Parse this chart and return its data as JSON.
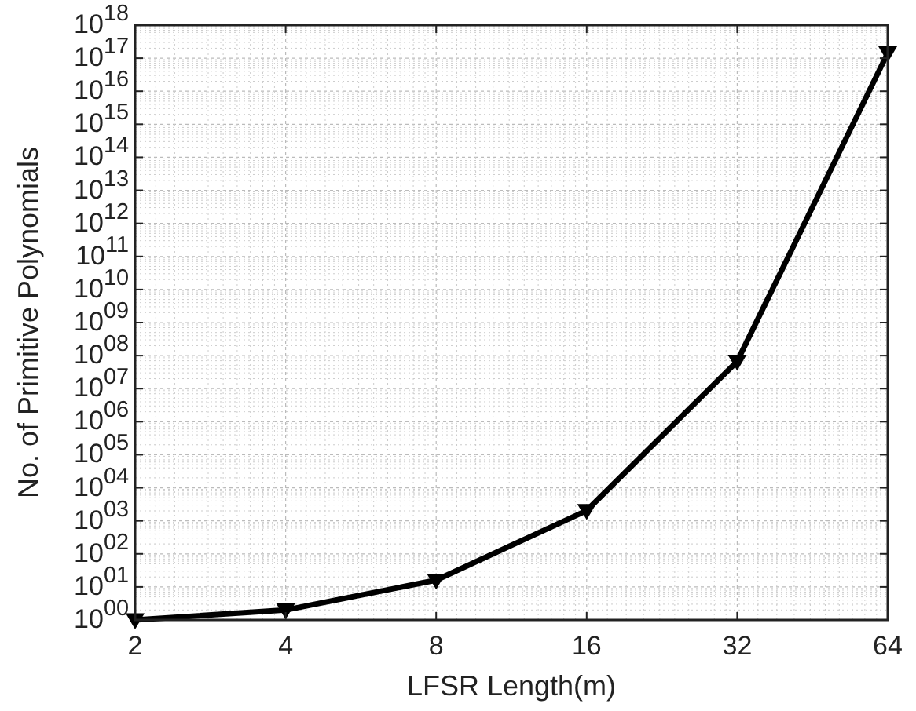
{
  "chart_data": {
    "type": "line",
    "xlabel": "LFSR Length(m)",
    "ylabel": "No. of Primitive Polynomials",
    "x": [
      2,
      4,
      8,
      16,
      32,
      64
    ],
    "series": [
      {
        "color": "#000000",
        "values": [
          1,
          2,
          16,
          2048,
          67108864,
          144000000000000000
        ]
      }
    ],
    "log": "xy",
    "xlim": [
      2,
      64
    ],
    "xticks": [
      2,
      4,
      8,
      16,
      32,
      64
    ],
    "ylim": [
      1,
      1000000000000000000
    ],
    "yticks": [
      {
        "value": 1,
        "label": "10$^{00}$"
      },
      {
        "value": 10,
        "label": "10$^{01}$"
      },
      {
        "value": 100,
        "label": "10$^{02}$"
      },
      {
        "value": 1000,
        "label": "10$^{03}$"
      },
      {
        "value": 10000,
        "label": "10$^{04}$"
      },
      {
        "value": 100000,
        "label": "10$^{05}$"
      },
      {
        "value": 1000000,
        "label": "10$^{06}$"
      },
      {
        "value": 10000000,
        "label": "10$^{07}$"
      },
      {
        "value": 100000000,
        "label": "10$^{08}$"
      },
      {
        "value": 1000000000,
        "label": "10$^{09}$"
      },
      {
        "value": 10000000000,
        "label": "10$^{10}$"
      },
      {
        "value": 100000000000,
        "label": "10$^{11}$"
      },
      {
        "value": 1000000000000,
        "label": "10$^{12}$"
      },
      {
        "value": 10000000000000,
        "label": "10$^{13}$"
      },
      {
        "value": 100000000000000,
        "label": "10$^{14}$"
      },
      {
        "value": 1000000000000000,
        "label": "10$^{15}$"
      },
      {
        "value": 10000000000000000,
        "label": "10$^{16}$"
      },
      {
        "value": 100000000000000000,
        "label": "10$^{17}$"
      },
      {
        "value": 1000000000000000000,
        "label": "10$^{18}$"
      }
    ],
    "grid": true,
    "marker": "triangle",
    "line_style": "solid"
  }
}
